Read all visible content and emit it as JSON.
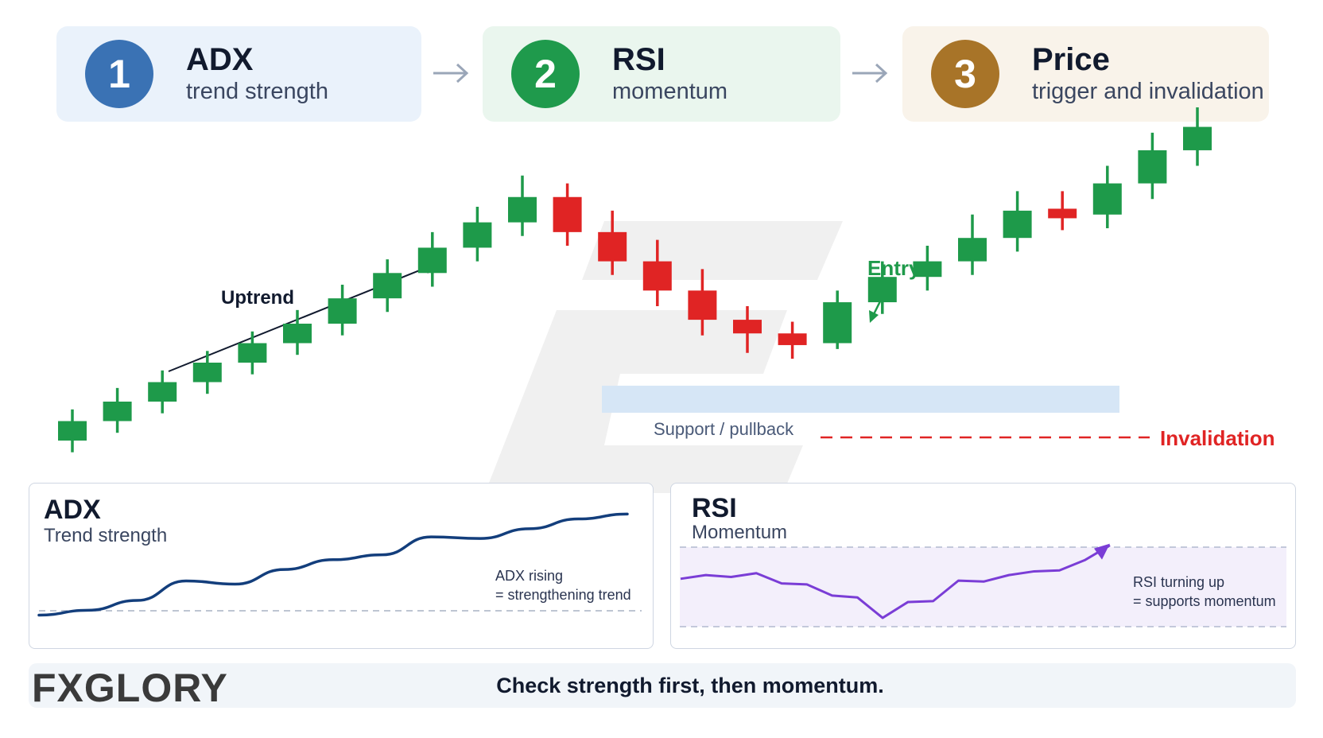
{
  "steps": [
    {
      "number": "1",
      "title": "ADX",
      "subtitle": "trend strength",
      "color": "#3a72b4",
      "bg": "#eaf2fb"
    },
    {
      "number": "2",
      "title": "RSI",
      "subtitle": "momentum",
      "color": "#1f9a4c",
      "bg": "#eaf6ee"
    },
    {
      "number": "3",
      "title": "Price",
      "subtitle": "trigger and invalidation",
      "color": "#a87428",
      "bg": "#f9f3ea"
    }
  ],
  "chart_labels": {
    "uptrend": "Uptrend",
    "entry": "Entry",
    "support": "Support / pullback",
    "invalidation": "Invalidation"
  },
  "colors": {
    "bull": "#1e9a4a",
    "bear": "#e02424",
    "support_band": "#d6e6f6",
    "adx_line": "#133e7c",
    "rsi_line": "#7a3dd6",
    "invalidation": "#e02424"
  },
  "candles": [
    {
      "o": 0,
      "c": 1,
      "l": -0.6,
      "h": 1.6,
      "bull": true
    },
    {
      "o": 1,
      "c": 2,
      "l": 0.4,
      "h": 2.7,
      "bull": true
    },
    {
      "o": 2,
      "c": 3,
      "l": 1.4,
      "h": 3.6,
      "bull": true
    },
    {
      "o": 3,
      "c": 4,
      "l": 2.4,
      "h": 4.6,
      "bull": true
    },
    {
      "o": 4,
      "c": 5,
      "l": 3.4,
      "h": 5.6,
      "bull": true
    },
    {
      "o": 5,
      "c": 6,
      "l": 4.4,
      "h": 6.7,
      "bull": true
    },
    {
      "o": 6,
      "c": 7.3,
      "l": 5.4,
      "h": 8.0,
      "bull": true
    },
    {
      "o": 7.3,
      "c": 8.6,
      "l": 6.6,
      "h": 9.3,
      "bull": true
    },
    {
      "o": 8.6,
      "c": 9.9,
      "l": 7.9,
      "h": 10.7,
      "bull": true
    },
    {
      "o": 9.9,
      "c": 11.2,
      "l": 9.2,
      "h": 12.0,
      "bull": true
    },
    {
      "o": 11.2,
      "c": 12.5,
      "l": 10.5,
      "h": 13.6,
      "bull": true
    },
    {
      "o": 12.5,
      "c": 10.7,
      "l": 10.0,
      "h": 13.2,
      "bull": false
    },
    {
      "o": 10.7,
      "c": 9.2,
      "l": 8.5,
      "h": 11.8,
      "bull": false
    },
    {
      "o": 9.2,
      "c": 7.7,
      "l": 6.9,
      "h": 10.3,
      "bull": false
    },
    {
      "o": 7.7,
      "c": 6.2,
      "l": 5.4,
      "h": 8.8,
      "bull": false
    },
    {
      "o": 6.2,
      "c": 5.5,
      "l": 4.5,
      "h": 6.9,
      "bull": false
    },
    {
      "o": 5.5,
      "c": 4.9,
      "l": 4.2,
      "h": 6.1,
      "bull": false
    },
    {
      "o": 5.0,
      "c": 7.1,
      "l": 4.7,
      "h": 7.7,
      "bull": true
    },
    {
      "o": 7.1,
      "c": 8.4,
      "l": 6.5,
      "h": 9.2,
      "bull": true
    },
    {
      "o": 8.4,
      "c": 9.2,
      "l": 7.7,
      "h": 10.0,
      "bull": true
    },
    {
      "o": 9.2,
      "c": 10.4,
      "l": 8.5,
      "h": 11.6,
      "bull": true
    },
    {
      "o": 10.4,
      "c": 11.8,
      "l": 9.7,
      "h": 12.8,
      "bull": true
    },
    {
      "o": 11.9,
      "c": 11.5,
      "l": 10.8,
      "h": 12.8,
      "bull": false
    },
    {
      "o": 11.6,
      "c": 13.2,
      "l": 10.9,
      "h": 14.1,
      "bull": true
    },
    {
      "o": 13.2,
      "c": 14.9,
      "l": 12.4,
      "h": 15.8,
      "bull": true
    },
    {
      "o": 14.9,
      "c": 16.1,
      "l": 14.1,
      "h": 17.1,
      "bull": true
    }
  ],
  "adx": {
    "title": "ADX",
    "subtitle": "Trend strength",
    "note_line1": "ADX rising",
    "note_line2": "= strengthening trend",
    "values": [
      10,
      13,
      19,
      31,
      29,
      38,
      44,
      47,
      58,
      57,
      63,
      69,
      72
    ]
  },
  "rsi": {
    "title": "RSI",
    "subtitle": "Momentum",
    "note_line1": "RSI turning up",
    "note_line2": "= supports momentum",
    "values": [
      60,
      64,
      62,
      66,
      55,
      54,
      42,
      40,
      18,
      35,
      36,
      58,
      57,
      64,
      68,
      69,
      80,
      96
    ]
  },
  "footer": {
    "text": "Check strength first, then momentum.",
    "logo": "FXGLORY"
  }
}
